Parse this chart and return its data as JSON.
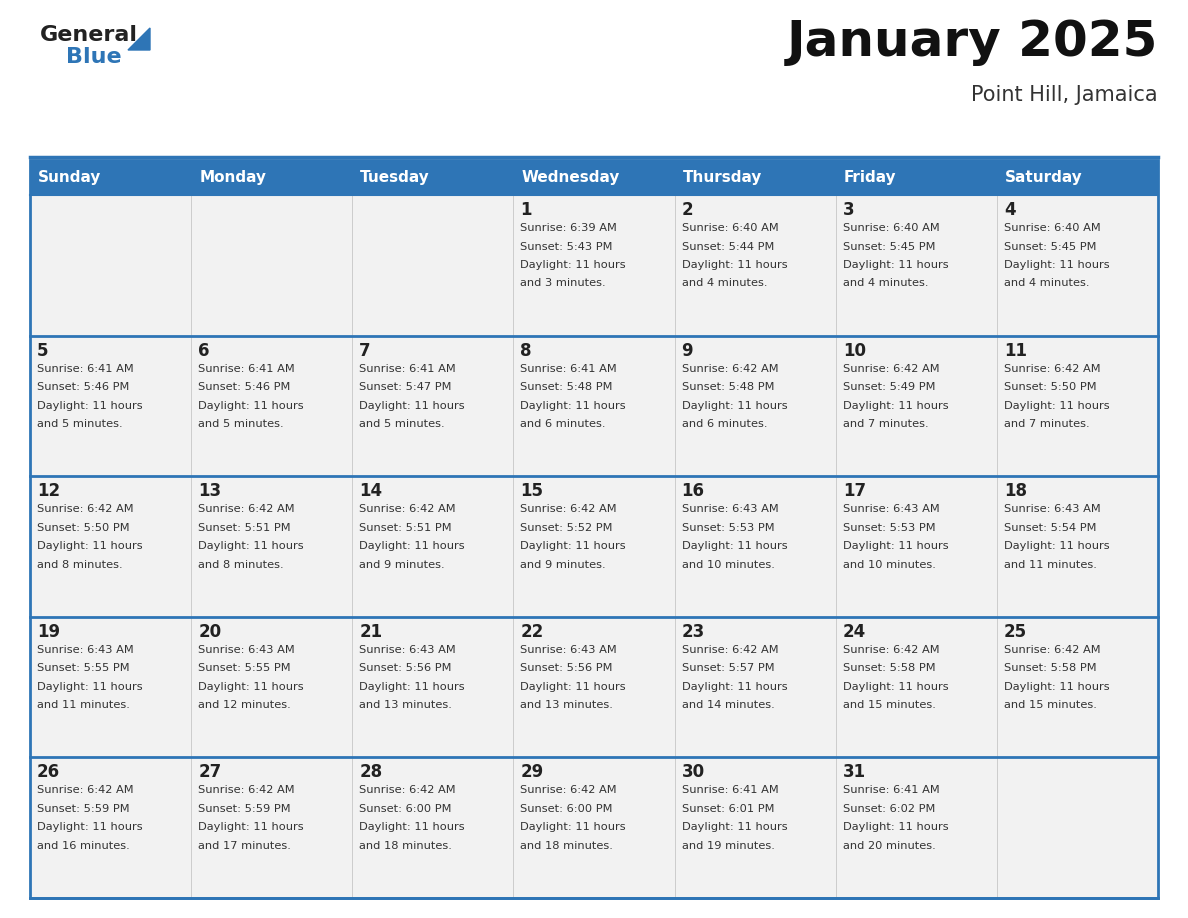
{
  "title": "January 2025",
  "subtitle": "Point Hill, Jamaica",
  "header_bg": "#2E75B6",
  "header_text_color": "#FFFFFF",
  "cell_bg": "#F2F2F2",
  "day_names": [
    "Sunday",
    "Monday",
    "Tuesday",
    "Wednesday",
    "Thursday",
    "Friday",
    "Saturday"
  ],
  "days": [
    {
      "day": 1,
      "col": 3,
      "row": 0,
      "sunrise": "6:39 AM",
      "sunset": "5:43 PM",
      "daylight": "11 hours and 3 minutes."
    },
    {
      "day": 2,
      "col": 4,
      "row": 0,
      "sunrise": "6:40 AM",
      "sunset": "5:44 PM",
      "daylight": "11 hours and 4 minutes."
    },
    {
      "day": 3,
      "col": 5,
      "row": 0,
      "sunrise": "6:40 AM",
      "sunset": "5:45 PM",
      "daylight": "11 hours and 4 minutes."
    },
    {
      "day": 4,
      "col": 6,
      "row": 0,
      "sunrise": "6:40 AM",
      "sunset": "5:45 PM",
      "daylight": "11 hours and 4 minutes."
    },
    {
      "day": 5,
      "col": 0,
      "row": 1,
      "sunrise": "6:41 AM",
      "sunset": "5:46 PM",
      "daylight": "11 hours and 5 minutes."
    },
    {
      "day": 6,
      "col": 1,
      "row": 1,
      "sunrise": "6:41 AM",
      "sunset": "5:46 PM",
      "daylight": "11 hours and 5 minutes."
    },
    {
      "day": 7,
      "col": 2,
      "row": 1,
      "sunrise": "6:41 AM",
      "sunset": "5:47 PM",
      "daylight": "11 hours and 5 minutes."
    },
    {
      "day": 8,
      "col": 3,
      "row": 1,
      "sunrise": "6:41 AM",
      "sunset": "5:48 PM",
      "daylight": "11 hours and 6 minutes."
    },
    {
      "day": 9,
      "col": 4,
      "row": 1,
      "sunrise": "6:42 AM",
      "sunset": "5:48 PM",
      "daylight": "11 hours and 6 minutes."
    },
    {
      "day": 10,
      "col": 5,
      "row": 1,
      "sunrise": "6:42 AM",
      "sunset": "5:49 PM",
      "daylight": "11 hours and 7 minutes."
    },
    {
      "day": 11,
      "col": 6,
      "row": 1,
      "sunrise": "6:42 AM",
      "sunset": "5:50 PM",
      "daylight": "11 hours and 7 minutes."
    },
    {
      "day": 12,
      "col": 0,
      "row": 2,
      "sunrise": "6:42 AM",
      "sunset": "5:50 PM",
      "daylight": "11 hours and 8 minutes."
    },
    {
      "day": 13,
      "col": 1,
      "row": 2,
      "sunrise": "6:42 AM",
      "sunset": "5:51 PM",
      "daylight": "11 hours and 8 minutes."
    },
    {
      "day": 14,
      "col": 2,
      "row": 2,
      "sunrise": "6:42 AM",
      "sunset": "5:51 PM",
      "daylight": "11 hours and 9 minutes."
    },
    {
      "day": 15,
      "col": 3,
      "row": 2,
      "sunrise": "6:42 AM",
      "sunset": "5:52 PM",
      "daylight": "11 hours and 9 minutes."
    },
    {
      "day": 16,
      "col": 4,
      "row": 2,
      "sunrise": "6:43 AM",
      "sunset": "5:53 PM",
      "daylight": "11 hours and 10 minutes."
    },
    {
      "day": 17,
      "col": 5,
      "row": 2,
      "sunrise": "6:43 AM",
      "sunset": "5:53 PM",
      "daylight": "11 hours and 10 minutes."
    },
    {
      "day": 18,
      "col": 6,
      "row": 2,
      "sunrise": "6:43 AM",
      "sunset": "5:54 PM",
      "daylight": "11 hours and 11 minutes."
    },
    {
      "day": 19,
      "col": 0,
      "row": 3,
      "sunrise": "6:43 AM",
      "sunset": "5:55 PM",
      "daylight": "11 hours and 11 minutes."
    },
    {
      "day": 20,
      "col": 1,
      "row": 3,
      "sunrise": "6:43 AM",
      "sunset": "5:55 PM",
      "daylight": "11 hours and 12 minutes."
    },
    {
      "day": 21,
      "col": 2,
      "row": 3,
      "sunrise": "6:43 AM",
      "sunset": "5:56 PM",
      "daylight": "11 hours and 13 minutes."
    },
    {
      "day": 22,
      "col": 3,
      "row": 3,
      "sunrise": "6:43 AM",
      "sunset": "5:56 PM",
      "daylight": "11 hours and 13 minutes."
    },
    {
      "day": 23,
      "col": 4,
      "row": 3,
      "sunrise": "6:42 AM",
      "sunset": "5:57 PM",
      "daylight": "11 hours and 14 minutes."
    },
    {
      "day": 24,
      "col": 5,
      "row": 3,
      "sunrise": "6:42 AM",
      "sunset": "5:58 PM",
      "daylight": "11 hours and 15 minutes."
    },
    {
      "day": 25,
      "col": 6,
      "row": 3,
      "sunrise": "6:42 AM",
      "sunset": "5:58 PM",
      "daylight": "11 hours and 15 minutes."
    },
    {
      "day": 26,
      "col": 0,
      "row": 4,
      "sunrise": "6:42 AM",
      "sunset": "5:59 PM",
      "daylight": "11 hours and 16 minutes."
    },
    {
      "day": 27,
      "col": 1,
      "row": 4,
      "sunrise": "6:42 AM",
      "sunset": "5:59 PM",
      "daylight": "11 hours and 17 minutes."
    },
    {
      "day": 28,
      "col": 2,
      "row": 4,
      "sunrise": "6:42 AM",
      "sunset": "6:00 PM",
      "daylight": "11 hours and 18 minutes."
    },
    {
      "day": 29,
      "col": 3,
      "row": 4,
      "sunrise": "6:42 AM",
      "sunset": "6:00 PM",
      "daylight": "11 hours and 18 minutes."
    },
    {
      "day": 30,
      "col": 4,
      "row": 4,
      "sunrise": "6:41 AM",
      "sunset": "6:01 PM",
      "daylight": "11 hours and 19 minutes."
    },
    {
      "day": 31,
      "col": 5,
      "row": 4,
      "sunrise": "6:41 AM",
      "sunset": "6:02 PM",
      "daylight": "11 hours and 20 minutes."
    }
  ],
  "logo_general_color": "#222222",
  "logo_blue_color": "#2E75B6",
  "border_color": "#2E75B6"
}
